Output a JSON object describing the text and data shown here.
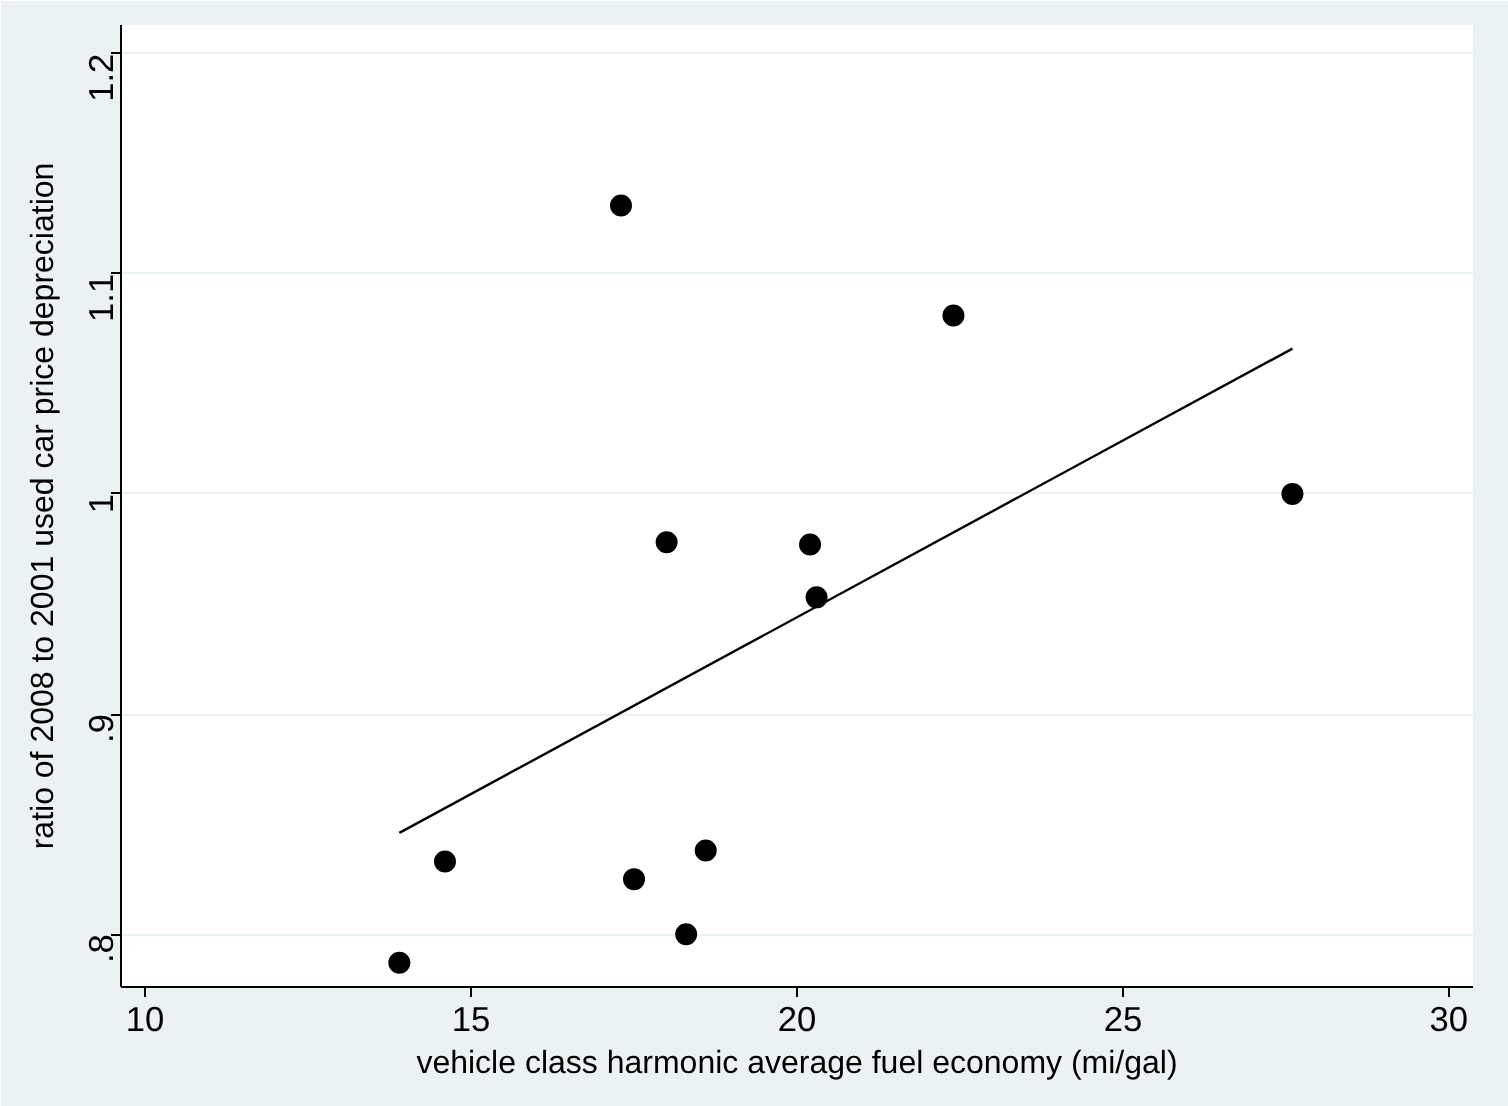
{
  "chart_data": {
    "type": "scatter",
    "xlabel": "vehicle class harmonic average fuel economy (mi/gal)",
    "ylabel": "ratio of 2008 to 2001 used car price depreciation",
    "xlim": [
      9.63,
      30.37
    ],
    "ylim": [
      0.776,
      1.213
    ],
    "xticks": [
      10,
      15,
      20,
      25,
      30
    ],
    "yticks": [
      {
        "value": 0.8,
        "label": ".8"
      },
      {
        "value": 0.9,
        "label": ".9"
      },
      {
        "value": 1,
        "label": "1"
      },
      {
        "value": 1.1,
        "label": "1.1"
      },
      {
        "value": 1.2,
        "label": "1.2"
      }
    ],
    "grid": "y",
    "marker": "circle",
    "series": [
      {
        "color": "#000000",
        "x": [
          13.9,
          14.6,
          17.3,
          17.5,
          18.0,
          18.3,
          18.6,
          20.2,
          20.3,
          22.4,
          27.6
        ],
        "values": [
          0.787,
          0.833,
          1.131,
          0.825,
          0.978,
          0.8,
          0.838,
          0.977,
          0.953,
          1.081,
          1.0
        ]
      },
      {
        "type": "line",
        "color": "#000000",
        "line_style": "solid",
        "marker": "none",
        "x": [
          13.9,
          27.6
        ],
        "values": [
          0.846,
          1.066
        ]
      }
    ]
  }
}
